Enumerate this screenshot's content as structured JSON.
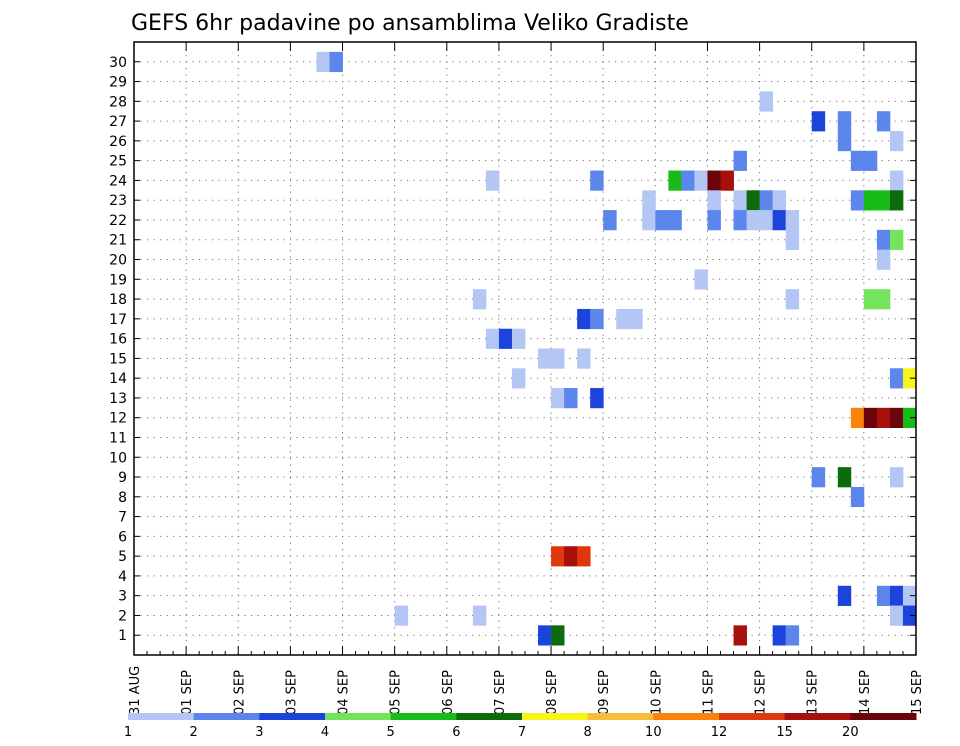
{
  "chart_data": {
    "type": "heatmap",
    "title": "GEFS 6hr padavine po ansamblima Veliko Gradiste",
    "x_tick_labels": [
      "31 AUG",
      "01 SEP",
      "02 SEP",
      "03 SEP",
      "04 SEP",
      "05 SEP",
      "06 SEP",
      "07 SEP",
      "08 SEP",
      "09 SEP",
      "10 SEP",
      "11 SEP",
      "12 SEP",
      "13 SEP",
      "14 SEP",
      "15 SEP"
    ],
    "y_tick_labels": [
      "1",
      "2",
      "3",
      "4",
      "5",
      "6",
      "7",
      "8",
      "9",
      "10",
      "11",
      "12",
      "13",
      "14",
      "15",
      "16",
      "17",
      "18",
      "19",
      "20",
      "21",
      "22",
      "23",
      "24",
      "25",
      "26",
      "27",
      "28",
      "29",
      "30"
    ],
    "xlim": [
      0,
      60
    ],
    "ylim": [
      0,
      31
    ],
    "x_unit": "6-hour step",
    "grid": true,
    "legend": {
      "placement": "bottom",
      "labels": [
        "1",
        "2",
        "3",
        "4",
        "5",
        "6",
        "7",
        "8",
        "10",
        "12",
        "15",
        "20"
      ],
      "colors": [
        "#b4c6f4",
        "#5c86ec",
        "#1c44dc",
        "#74e45c",
        "#18bc18",
        "#0c6c0c",
        "#f8f418",
        "#f8bc3c",
        "#f8840c",
        "#e0380c",
        "#a8100c",
        "#6c040c"
      ]
    },
    "cells": [
      [
        14.5,
        30,
        0
      ],
      [
        15.5,
        30,
        1
      ],
      [
        48.5,
        28,
        0
      ],
      [
        52.5,
        27,
        2
      ],
      [
        54.5,
        27,
        1
      ],
      [
        57.5,
        27,
        1
      ],
      [
        54.5,
        26,
        1
      ],
      [
        58.5,
        26,
        0
      ],
      [
        46.5,
        25,
        1
      ],
      [
        55.5,
        25,
        1
      ],
      [
        56.5,
        25,
        1
      ],
      [
        27.5,
        24,
        0
      ],
      [
        35.5,
        24,
        1
      ],
      [
        41.5,
        24,
        4
      ],
      [
        42.5,
        24,
        1
      ],
      [
        43.5,
        24,
        0
      ],
      [
        44.5,
        24,
        11
      ],
      [
        45.5,
        24,
        10
      ],
      [
        58.5,
        24,
        0
      ],
      [
        39.5,
        23,
        0
      ],
      [
        44.5,
        23,
        0
      ],
      [
        46.5,
        23,
        0
      ],
      [
        47.5,
        23,
        5
      ],
      [
        48.5,
        23,
        1
      ],
      [
        49.5,
        23,
        0
      ],
      [
        55.5,
        23,
        1
      ],
      [
        56.5,
        23,
        4
      ],
      [
        57.5,
        23,
        4
      ],
      [
        58.5,
        23,
        5
      ],
      [
        36.5,
        22,
        1
      ],
      [
        39.5,
        22,
        0
      ],
      [
        40.5,
        22,
        1
      ],
      [
        41.5,
        22,
        1
      ],
      [
        44.5,
        22,
        1
      ],
      [
        46.5,
        22,
        1
      ],
      [
        47.5,
        22,
        0
      ],
      [
        48.5,
        22,
        0
      ],
      [
        49.5,
        22,
        2
      ],
      [
        50.5,
        22,
        0
      ],
      [
        50.5,
        21,
        0
      ],
      [
        57.5,
        21,
        1
      ],
      [
        58.5,
        21,
        3
      ],
      [
        57.5,
        20,
        0
      ],
      [
        43.5,
        19,
        0
      ],
      [
        26.5,
        18,
        0
      ],
      [
        50.5,
        18,
        0
      ],
      [
        56.5,
        18,
        3
      ],
      [
        57.5,
        18,
        3
      ],
      [
        34.5,
        17,
        2
      ],
      [
        35.5,
        17,
        1
      ],
      [
        37.5,
        17,
        0
      ],
      [
        38.5,
        17,
        0
      ],
      [
        27.5,
        16,
        0
      ],
      [
        28.5,
        16,
        2
      ],
      [
        29.5,
        16,
        0
      ],
      [
        31.5,
        15,
        0
      ],
      [
        32.5,
        15,
        0
      ],
      [
        34.5,
        15,
        0
      ],
      [
        29.5,
        14,
        0
      ],
      [
        58.5,
        14,
        1
      ],
      [
        59.5,
        14,
        6
      ],
      [
        32.5,
        13,
        0
      ],
      [
        33.5,
        13,
        1
      ],
      [
        35.5,
        13,
        2
      ],
      [
        55.5,
        12,
        8
      ],
      [
        56.5,
        12,
        11
      ],
      [
        57.5,
        12,
        10
      ],
      [
        58.5,
        12,
        11
      ],
      [
        59.5,
        12,
        4
      ],
      [
        52.5,
        9,
        1
      ],
      [
        54.5,
        9,
        5
      ],
      [
        58.5,
        9,
        0
      ],
      [
        55.5,
        8,
        1
      ],
      [
        32.5,
        5,
        9
      ],
      [
        33.5,
        5,
        10
      ],
      [
        34.5,
        5,
        9
      ],
      [
        54.5,
        3,
        2
      ],
      [
        57.5,
        3,
        1
      ],
      [
        58.5,
        3,
        2
      ],
      [
        59.5,
        3,
        0
      ],
      [
        20.5,
        2,
        0
      ],
      [
        26.5,
        2,
        0
      ],
      [
        58.5,
        2,
        0
      ],
      [
        59.5,
        2,
        2
      ],
      [
        31.5,
        1,
        2
      ],
      [
        32.5,
        1,
        5
      ],
      [
        46.5,
        1,
        10
      ],
      [
        49.5,
        1,
        2
      ],
      [
        50.5,
        1,
        1
      ]
    ]
  }
}
